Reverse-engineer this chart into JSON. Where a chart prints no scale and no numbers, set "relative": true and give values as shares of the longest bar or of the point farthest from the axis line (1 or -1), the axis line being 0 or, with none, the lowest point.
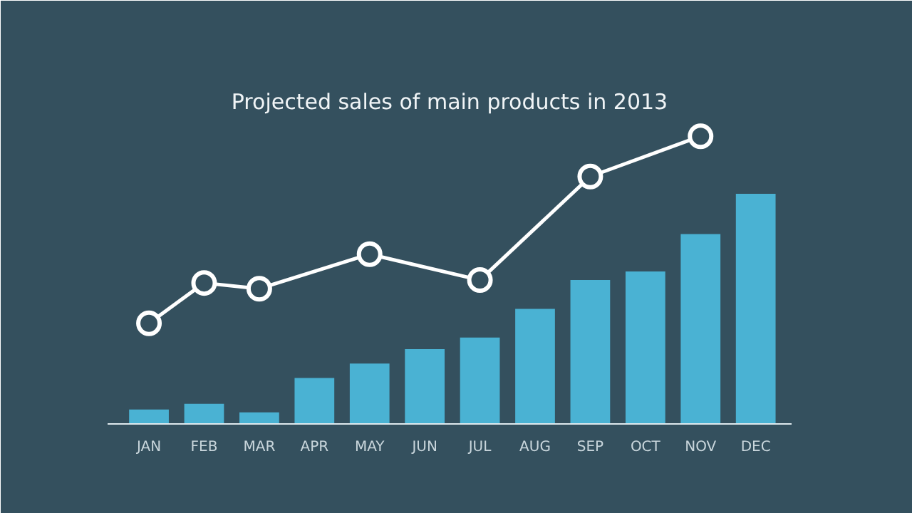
{
  "chart_data": {
    "type": "bar",
    "title": "Projected sales of main products in 2013",
    "relative": true,
    "categories": [
      "JAN",
      "FEB",
      "MAR",
      "APR",
      "MAY",
      "JUN",
      "JUL",
      "AUG",
      "SEP",
      "OCT",
      "NOV",
      "DEC"
    ],
    "series": [
      {
        "color": "#4fc3e8",
        "values": [
          0.05,
          0.07,
          0.04,
          0.16,
          0.21,
          0.26,
          0.3,
          0.4,
          0.5,
          0.53,
          0.66,
          0.8
        ]
      },
      {
        "type": "line",
        "color": "#ffffff",
        "values": [
          0.35,
          0.49,
          0.47,
          null,
          0.59,
          null,
          0.5,
          null,
          0.86,
          null,
          1,
          null
        ]
      }
    ],
    "marker": "circle",
    "line_style": "solid",
    "grid": false
  }
}
